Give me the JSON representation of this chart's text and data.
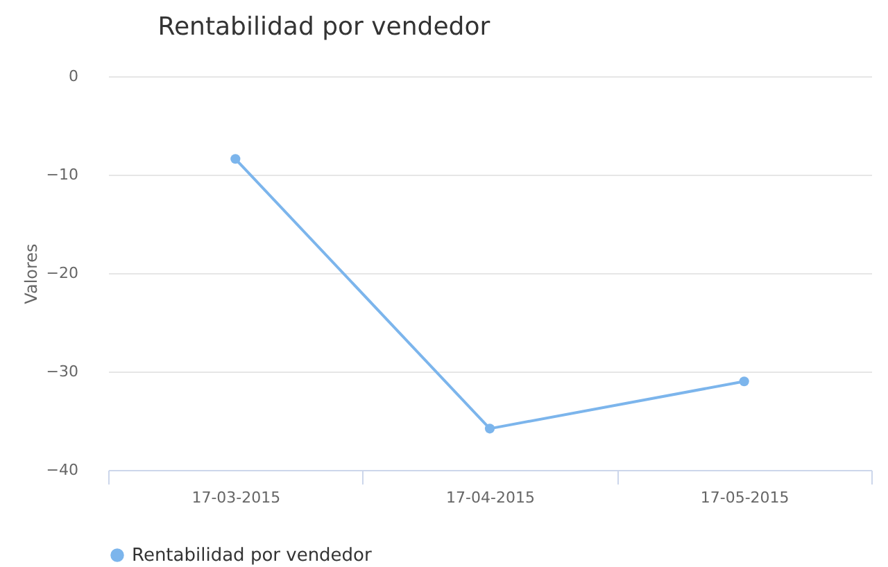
{
  "chart_data": {
    "type": "line",
    "title": "Rentabilidad por vendedor",
    "ylabel": "Valores",
    "categories": [
      "17-03-2015",
      "17-04-2015",
      "17-05-2015"
    ],
    "series": [
      {
        "name": "Rentabilidad por vendedor",
        "color": "#7cb5ec",
        "values": [
          -8.4,
          -35.8,
          -31.0
        ]
      }
    ],
    "ylim": [
      -40,
      0
    ],
    "yticks": [
      -40,
      -30,
      -20,
      -10,
      0
    ],
    "grid": "y",
    "legend": "bottom",
    "marker": "circle",
    "line_style": "solid"
  }
}
